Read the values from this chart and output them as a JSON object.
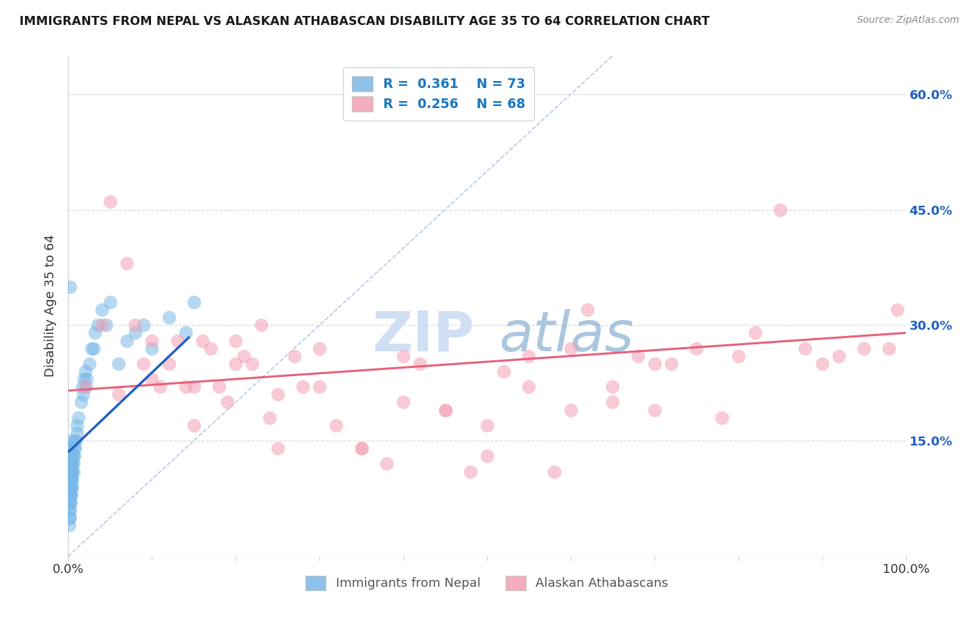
{
  "title": "IMMIGRANTS FROM NEPAL VS ALASKAN ATHABASCAN DISABILITY AGE 35 TO 64 CORRELATION CHART",
  "source": "Source: ZipAtlas.com",
  "ylabel": "Disability Age 35 to 64",
  "xlim": [
    0.0,
    1.0
  ],
  "ylim": [
    0.0,
    0.65
  ],
  "x_ticks": [
    0.0,
    0.1,
    0.2,
    0.3,
    0.4,
    0.5,
    0.6,
    0.7,
    0.8,
    0.9,
    1.0
  ],
  "x_tick_labels": [
    "0.0%",
    "",
    "",
    "",
    "",
    "",
    "",
    "",
    "",
    "",
    "100.0%"
  ],
  "y_ticks": [
    0.0,
    0.15,
    0.3,
    0.45,
    0.6
  ],
  "y_tick_labels_right": [
    "",
    "15.0%",
    "30.0%",
    "45.0%",
    "60.0%"
  ],
  "legend_label1": "Immigrants from Nepal",
  "legend_label2": "Alaskan Athabascans",
  "color_blue": "#7ab8e8",
  "color_pink": "#f4a0b5",
  "color_blue_line": "#2060c0",
  "color_pink_line": "#e8607a",
  "color_diag_line": "#b0c8e8",
  "watermark_zip": "ZIP",
  "watermark_atlas": "atlas",
  "nepal_x": [
    0.001,
    0.001,
    0.001,
    0.001,
    0.001,
    0.001,
    0.001,
    0.001,
    0.001,
    0.001,
    0.002,
    0.002,
    0.002,
    0.002,
    0.002,
    0.002,
    0.002,
    0.002,
    0.002,
    0.002,
    0.003,
    0.003,
    0.003,
    0.003,
    0.003,
    0.003,
    0.003,
    0.003,
    0.004,
    0.004,
    0.004,
    0.004,
    0.004,
    0.004,
    0.005,
    0.005,
    0.005,
    0.005,
    0.005,
    0.006,
    0.006,
    0.006,
    0.007,
    0.007,
    0.008,
    0.008,
    0.009,
    0.01,
    0.01,
    0.012,
    0.015,
    0.017,
    0.018,
    0.019,
    0.02,
    0.021,
    0.022,
    0.025,
    0.028,
    0.03,
    0.032,
    0.035,
    0.04,
    0.045,
    0.05,
    0.06,
    0.07,
    0.08,
    0.09,
    0.1,
    0.12,
    0.14,
    0.15,
    0.001,
    0.002
  ],
  "nepal_y": [
    0.07,
    0.08,
    0.09,
    0.1,
    0.11,
    0.12,
    0.13,
    0.05,
    0.06,
    0.04,
    0.08,
    0.09,
    0.1,
    0.11,
    0.12,
    0.13,
    0.14,
    0.07,
    0.06,
    0.05,
    0.09,
    0.1,
    0.11,
    0.12,
    0.13,
    0.08,
    0.07,
    0.15,
    0.1,
    0.11,
    0.12,
    0.09,
    0.14,
    0.08,
    0.11,
    0.12,
    0.13,
    0.1,
    0.09,
    0.12,
    0.11,
    0.13,
    0.13,
    0.14,
    0.14,
    0.15,
    0.15,
    0.16,
    0.17,
    0.18,
    0.2,
    0.22,
    0.21,
    0.23,
    0.24,
    0.22,
    0.23,
    0.25,
    0.27,
    0.27,
    0.29,
    0.3,
    0.32,
    0.3,
    0.33,
    0.25,
    0.28,
    0.29,
    0.3,
    0.27,
    0.31,
    0.29,
    0.33,
    0.13,
    0.35
  ],
  "athabascan_x": [
    0.02,
    0.04,
    0.05,
    0.07,
    0.08,
    0.09,
    0.1,
    0.11,
    0.12,
    0.13,
    0.14,
    0.15,
    0.16,
    0.17,
    0.18,
    0.19,
    0.2,
    0.21,
    0.22,
    0.23,
    0.24,
    0.25,
    0.27,
    0.28,
    0.3,
    0.32,
    0.35,
    0.38,
    0.4,
    0.42,
    0.45,
    0.48,
    0.5,
    0.52,
    0.55,
    0.58,
    0.6,
    0.62,
    0.65,
    0.68,
    0.7,
    0.72,
    0.75,
    0.78,
    0.8,
    0.82,
    0.85,
    0.88,
    0.9,
    0.92,
    0.95,
    0.98,
    0.99,
    0.06,
    0.1,
    0.15,
    0.2,
    0.25,
    0.3,
    0.35,
    0.4,
    0.45,
    0.5,
    0.55,
    0.6,
    0.65,
    0.7
  ],
  "athabascan_y": [
    0.22,
    0.3,
    0.46,
    0.38,
    0.3,
    0.25,
    0.28,
    0.22,
    0.25,
    0.28,
    0.22,
    0.17,
    0.28,
    0.27,
    0.22,
    0.2,
    0.28,
    0.26,
    0.25,
    0.3,
    0.18,
    0.21,
    0.26,
    0.22,
    0.27,
    0.17,
    0.14,
    0.12,
    0.26,
    0.25,
    0.19,
    0.11,
    0.17,
    0.24,
    0.26,
    0.11,
    0.27,
    0.32,
    0.22,
    0.26,
    0.19,
    0.25,
    0.27,
    0.18,
    0.26,
    0.29,
    0.45,
    0.27,
    0.25,
    0.26,
    0.27,
    0.27,
    0.32,
    0.21,
    0.23,
    0.22,
    0.25,
    0.14,
    0.22,
    0.14,
    0.2,
    0.19,
    0.13,
    0.22,
    0.19,
    0.2,
    0.25
  ],
  "nepal_trend_x": [
    0.0,
    0.145
  ],
  "nepal_trend_y": [
    0.135,
    0.285
  ],
  "athabascan_trend_x": [
    0.0,
    1.0
  ],
  "athabascan_trend_y": [
    0.215,
    0.29
  ],
  "diag_line_x": [
    0.0,
    0.65
  ],
  "diag_line_y": [
    0.0,
    0.65
  ]
}
